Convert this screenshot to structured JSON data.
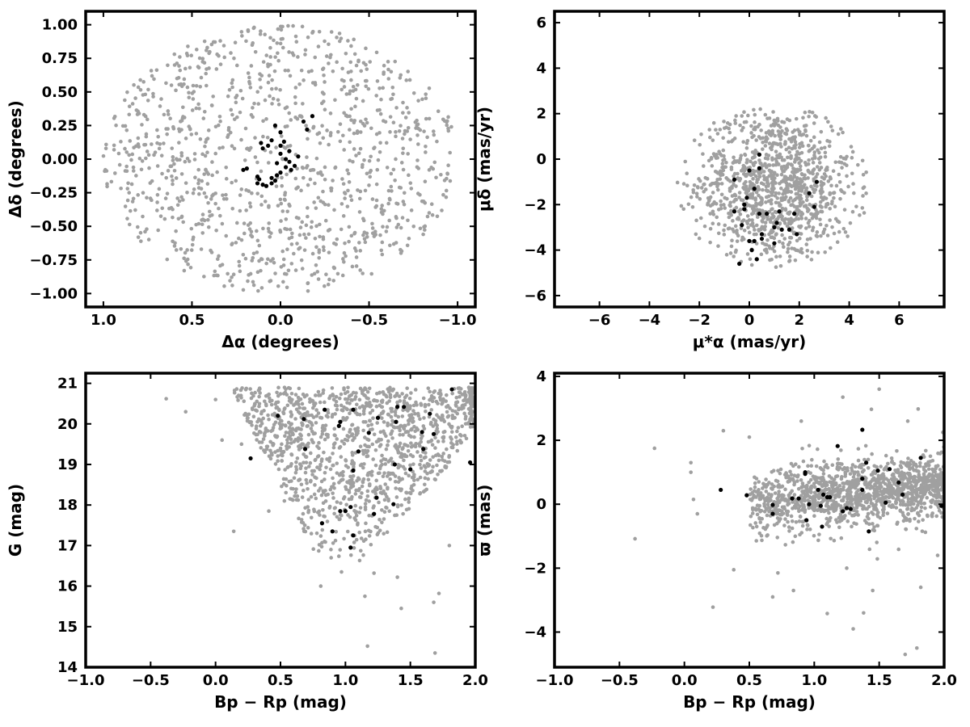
{
  "chart_data": [
    {
      "type": "scatter",
      "panel": "top-left",
      "xlabel": "Δα (degrees)",
      "ylabel": "Δδ (degrees)",
      "xlim": [
        1.1,
        -1.1
      ],
      "ylim": [
        -1.1,
        1.1
      ],
      "x_inverted": true,
      "xticks": [
        1.0,
        0.5,
        0.0,
        -0.5,
        -1.0
      ],
      "xtick_labels": [
        "1.0",
        "0.5",
        "0.0",
        "−0.5",
        "−1.0"
      ],
      "yticks": [
        -1.0,
        -0.75,
        -0.5,
        -0.25,
        0.0,
        0.25,
        0.5,
        0.75,
        1.0
      ],
      "ytick_labels": [
        "−1.00",
        "−0.75",
        "−0.50",
        "−0.25",
        "0.00",
        "0.25",
        "0.50",
        "0.75",
        "1.00"
      ],
      "series": [
        {
          "role": "field stars",
          "color": "#a0a0a0",
          "distribution": "uniform_disk",
          "center": [
            0,
            0
          ],
          "radius_x": 1.0,
          "radius_y": 1.0,
          "n_points": 1100
        },
        {
          "role": "cluster members",
          "color": "#000000",
          "points": [
            [
              -0.13,
              0.28
            ],
            [
              -0.18,
              0.32
            ],
            [
              -0.15,
              0.22
            ],
            [
              0.03,
              0.25
            ],
            [
              0.0,
              0.2
            ],
            [
              0.05,
              0.14
            ],
            [
              -0.02,
              0.13
            ],
            [
              -0.05,
              0.06
            ],
            [
              0.0,
              0.04
            ],
            [
              -0.03,
              0.0
            ],
            [
              -0.05,
              -0.02
            ],
            [
              0.02,
              -0.03
            ],
            [
              -0.08,
              -0.05
            ],
            [
              0.07,
              0.1
            ],
            [
              0.11,
              0.12
            ],
            [
              0.1,
              0.08
            ],
            [
              0.0,
              -0.1
            ],
            [
              0.02,
              -0.12
            ],
            [
              0.05,
              -0.14
            ],
            [
              0.03,
              -0.16
            ],
            [
              -0.1,
              0.02
            ],
            [
              0.19,
              -0.07
            ],
            [
              0.21,
              -0.08
            ],
            [
              0.13,
              -0.13
            ],
            [
              0.12,
              -0.15
            ],
            [
              0.13,
              -0.18
            ],
            [
              0.1,
              -0.19
            ],
            [
              0.08,
              -0.2
            ],
            [
              0.05,
              -0.18
            ],
            [
              -0.06,
              -0.08
            ],
            [
              -0.03,
              -0.06
            ],
            [
              0.0,
              0.1
            ]
          ]
        }
      ]
    },
    {
      "type": "scatter",
      "panel": "top-right",
      "xlabel": "μ*α (mas/yr)",
      "ylabel": "μδ (mas/yr)",
      "xlim": [
        -7.8,
        7.8
      ],
      "ylim": [
        -6.5,
        6.5
      ],
      "xticks": [
        -6,
        -4,
        -2,
        0,
        2,
        4,
        6
      ],
      "xtick_labels": [
        "−6",
        "−4",
        "−2",
        "0",
        "2",
        "4",
        "6"
      ],
      "yticks": [
        -6,
        -4,
        -2,
        0,
        2,
        4,
        6
      ],
      "ytick_labels": [
        "−6",
        "−4",
        "−2",
        "0",
        "2",
        "4",
        "6"
      ],
      "series": [
        {
          "role": "field stars",
          "color": "#a0a0a0",
          "distribution": "gaussian_clipped",
          "center": [
            1.0,
            -1.2
          ],
          "sigma": [
            1.6,
            1.8
          ],
          "clip_radius": [
            3.9,
            3.6
          ],
          "n_points": 1100
        },
        {
          "role": "cluster members",
          "color": "#000000",
          "points": [
            [
              0.4,
              0.2
            ],
            [
              0.0,
              -0.5
            ],
            [
              0.4,
              -0.4
            ],
            [
              -0.6,
              -0.9
            ],
            [
              0.2,
              -1.3
            ],
            [
              -0.1,
              -1.7
            ],
            [
              -0.2,
              -2.0
            ],
            [
              -0.2,
              -2.2
            ],
            [
              -0.6,
              -2.3
            ],
            [
              0.4,
              -2.4
            ],
            [
              0.7,
              -2.4
            ],
            [
              1.2,
              -2.3
            ],
            [
              1.8,
              -2.4
            ],
            [
              1.1,
              -2.8
            ],
            [
              1.0,
              -3.0
            ],
            [
              1.3,
              -3.1
            ],
            [
              1.6,
              -3.1
            ],
            [
              1.9,
              -3.3
            ],
            [
              0.5,
              -3.3
            ],
            [
              0.5,
              -3.5
            ],
            [
              0.0,
              -3.6
            ],
            [
              0.2,
              -3.6
            ],
            [
              1.0,
              -3.7
            ],
            [
              0.1,
              -4.0
            ],
            [
              0.3,
              -4.4
            ],
            [
              -0.4,
              -4.6
            ],
            [
              -0.3,
              -2.9
            ],
            [
              2.4,
              -1.5
            ],
            [
              2.7,
              -1.0
            ],
            [
              2.6,
              -2.1
            ]
          ]
        }
      ]
    },
    {
      "type": "scatter",
      "panel": "bottom-left",
      "xlabel": "Bp − Rp (mag)",
      "ylabel": "G (mag)",
      "xlim": [
        -1.0,
        2.0
      ],
      "ylim": [
        14,
        21.25
      ],
      "xticks": [
        -1.0,
        -0.5,
        0.0,
        0.5,
        1.0,
        1.5,
        2.0
      ],
      "xtick_labels": [
        "−1.0",
        "−0.5",
        "0.0",
        "0.5",
        "1.0",
        "1.5",
        "2.0"
      ],
      "yticks": [
        14,
        15,
        16,
        17,
        18,
        19,
        20,
        21
      ],
      "ytick_labels": [
        "14",
        "15",
        "16",
        "17",
        "18",
        "19",
        "20",
        "21"
      ],
      "series": [
        {
          "role": "field stars",
          "color": "#a0a0a0",
          "distribution": "color_magnitude_wedge",
          "n_points": 1300,
          "outliers": [
            [
              -0.38,
              20.62
            ],
            [
              -0.23,
              20.3
            ],
            [
              0.14,
              17.35
            ],
            [
              0.05,
              19.6
            ],
            [
              0.0,
              20.6
            ],
            [
              0.2,
              19.5
            ],
            [
              1.43,
              15.45
            ],
            [
              1.17,
              14.52
            ],
            [
              1.69,
              14.35
            ],
            [
              1.68,
              15.6
            ],
            [
              1.72,
              15.82
            ],
            [
              1.15,
              15.75
            ],
            [
              1.4,
              16.22
            ],
            [
              0.81,
              16.0
            ],
            [
              0.41,
              17.85
            ],
            [
              0.53,
              18.1
            ],
            [
              1.8,
              17.0
            ],
            [
              1.22,
              16.32
            ],
            [
              0.97,
              16.35
            ]
          ]
        },
        {
          "role": "cluster members",
          "color": "#000000",
          "points": [
            [
              1.82,
              20.85
            ],
            [
              0.48,
              20.2
            ],
            [
              0.68,
              20.12
            ],
            [
              0.84,
              20.35
            ],
            [
              0.96,
              20.05
            ],
            [
              1.06,
              20.35
            ],
            [
              1.25,
              20.15
            ],
            [
              1.4,
              20.42
            ],
            [
              1.45,
              20.42
            ],
            [
              1.65,
              20.25
            ],
            [
              1.39,
              20.05
            ],
            [
              0.69,
              19.38
            ],
            [
              0.95,
              19.95
            ],
            [
              1.18,
              19.78
            ],
            [
              1.59,
              19.8
            ],
            [
              1.68,
              19.75
            ],
            [
              1.1,
              19.32
            ],
            [
              1.6,
              19.38
            ],
            [
              1.96,
              19.05
            ],
            [
              0.27,
              19.15
            ],
            [
              1.38,
              19.0
            ],
            [
              1.5,
              18.88
            ],
            [
              1.06,
              18.85
            ],
            [
              1.24,
              18.18
            ],
            [
              1.04,
              17.95
            ],
            [
              1.37,
              18.02
            ],
            [
              0.82,
              17.55
            ],
            [
              0.96,
              17.85
            ],
            [
              1.0,
              17.85
            ],
            [
              0.9,
              17.35
            ],
            [
              1.06,
              17.25
            ],
            [
              1.04,
              16.95
            ],
            [
              1.22,
              17.78
            ]
          ]
        }
      ]
    },
    {
      "type": "scatter",
      "panel": "bottom-right",
      "xlabel": "Bp − Rp (mag)",
      "ylabel": "ϖ (mas)",
      "xlim": [
        -1.0,
        2.0
      ],
      "ylim": [
        -5.1,
        4.1
      ],
      "xticks": [
        -1.0,
        -0.5,
        0.0,
        0.5,
        1.0,
        1.5,
        2.0
      ],
      "xtick_labels": [
        "−1.0",
        "−0.5",
        "0.0",
        "0.5",
        "1.0",
        "1.5",
        "2.0"
      ],
      "yticks": [
        -4,
        -2,
        0,
        2,
        4
      ],
      "ytick_labels": [
        "−4",
        "−2",
        "0",
        "2",
        "4"
      ],
      "series": [
        {
          "role": "field stars",
          "color": "#a0a0a0",
          "distribution": "parallax_band",
          "n_points": 1350,
          "outliers": [
            [
              -0.23,
              1.75
            ],
            [
              -0.38,
              -1.08
            ],
            [
              0.05,
              1.3
            ],
            [
              0.05,
              1.0
            ],
            [
              0.07,
              0.15
            ],
            [
              0.1,
              -0.3
            ],
            [
              0.22,
              -3.22
            ],
            [
              0.38,
              -2.05
            ],
            [
              0.3,
              2.3
            ],
            [
              0.5,
              2.1
            ],
            [
              0.68,
              -2.9
            ],
            [
              0.72,
              -2.15
            ],
            [
              0.84,
              -2.7
            ],
            [
              1.1,
              -3.42
            ],
            [
              1.3,
              -3.9
            ],
            [
              1.38,
              -3.4
            ],
            [
              1.45,
              -2.7
            ],
            [
              1.7,
              -4.7
            ],
            [
              1.79,
              -4.5
            ],
            [
              1.82,
              -2.6
            ],
            [
              1.5,
              3.6
            ],
            [
              1.22,
              3.35
            ],
            [
              1.44,
              2.97
            ],
            [
              1.72,
              2.6
            ],
            [
              1.8,
              2.98
            ],
            [
              0.9,
              2.6
            ],
            [
              1.99,
              2.25
            ],
            [
              1.95,
              -1.6
            ],
            [
              1.25,
              -2.0
            ]
          ]
        },
        {
          "role": "cluster members",
          "color": "#000000",
          "points": [
            [
              1.37,
              2.33
            ],
            [
              1.82,
              1.45
            ],
            [
              1.18,
              1.82
            ],
            [
              0.93,
              1.0
            ],
            [
              0.93,
              0.95
            ],
            [
              1.4,
              1.3
            ],
            [
              1.49,
              1.05
            ],
            [
              1.58,
              1.1
            ],
            [
              1.65,
              0.68
            ],
            [
              1.55,
              0.05
            ],
            [
              1.68,
              0.3
            ],
            [
              0.28,
              0.45
            ],
            [
              0.48,
              0.28
            ],
            [
              0.68,
              -0.02
            ],
            [
              0.68,
              -0.3
            ],
            [
              0.83,
              0.18
            ],
            [
              0.88,
              0.18
            ],
            [
              0.96,
              0.0
            ],
            [
              1.03,
              0.45
            ],
            [
              1.07,
              0.3
            ],
            [
              1.1,
              0.22
            ],
            [
              1.12,
              0.22
            ],
            [
              0.94,
              -0.5
            ],
            [
              1.06,
              -0.7
            ],
            [
              1.05,
              -0.05
            ],
            [
              1.22,
              -0.22
            ],
            [
              1.25,
              -0.12
            ],
            [
              1.28,
              -0.15
            ],
            [
              1.37,
              0.45
            ],
            [
              1.37,
              0.8
            ],
            [
              1.42,
              -0.85
            ],
            [
              1.98,
              -0.05
            ]
          ]
        }
      ]
    }
  ]
}
